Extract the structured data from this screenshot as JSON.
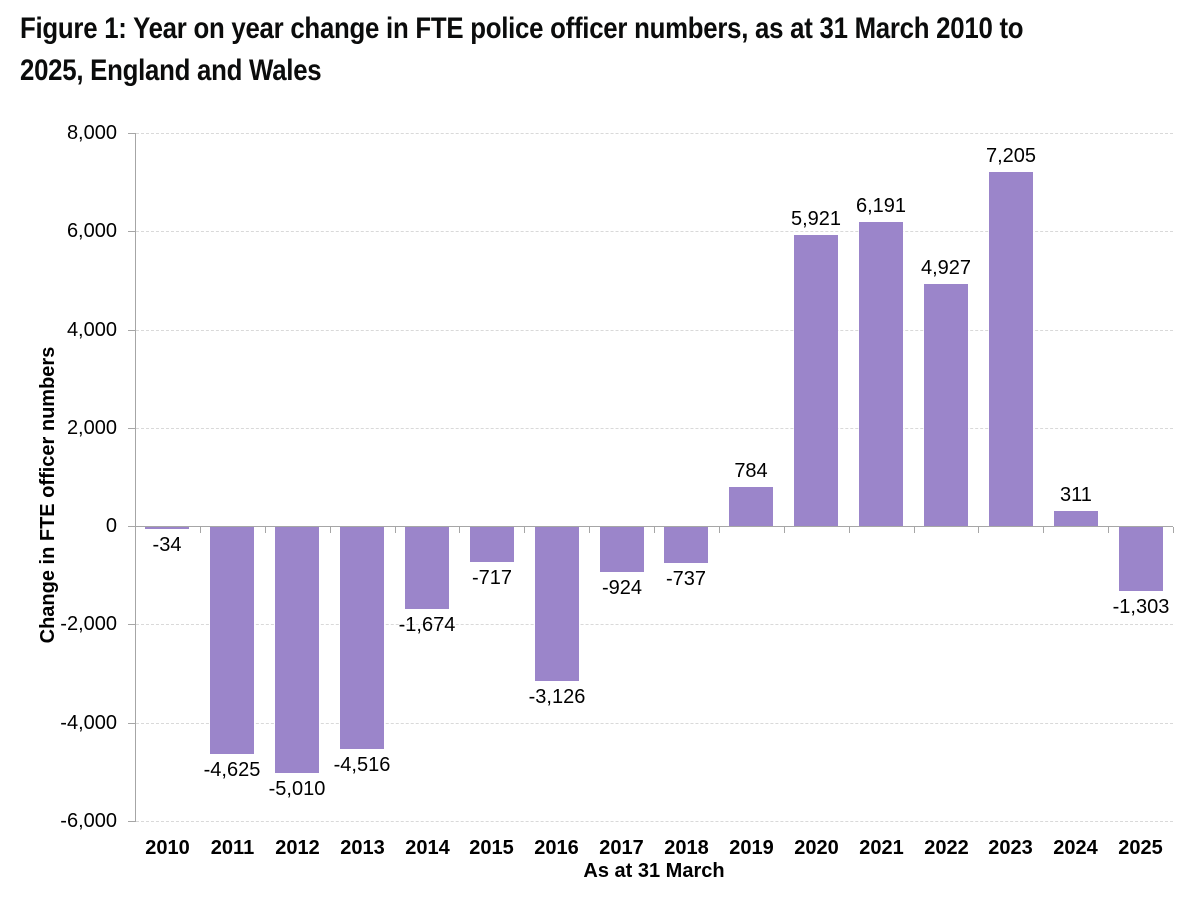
{
  "figure": {
    "title": "Figure 1: Year on year change in FTE police officer numbers, as at 31 March 2010 to 2025, England and Wales",
    "title_lines": [
      "Figure 1: Year on year change in FTE police officer numbers, as at 31 March 2010 to",
      "2025, England and Wales"
    ]
  },
  "chart_data": {
    "type": "bar",
    "title": "Figure 1: Year on year change in FTE police officer numbers, as at 31 March 2010 to 2025, England and Wales",
    "xlabel": "As at 31 March",
    "ylabel": "Change in FTE officer numbers",
    "ylim": [
      -6000,
      8000
    ],
    "ytick_step": 2000,
    "ytick_labels": [
      "8,000",
      "6,000",
      "4,000",
      "2,000",
      "0",
      "-2,000",
      "-4,000",
      "-6,000"
    ],
    "ytick_values": [
      8000,
      6000,
      4000,
      2000,
      0,
      -2000,
      -4000,
      -6000
    ],
    "grid": "horizontal-dashed",
    "legend_position": "none",
    "bar_color": "#9b85ca",
    "axis_color": "#a6a6a6",
    "gridline_color": "#d9d9d9",
    "text_color": "#000000",
    "categories": [
      "2010",
      "2011",
      "2012",
      "2013",
      "2014",
      "2015",
      "2016",
      "2017",
      "2018",
      "2019",
      "2020",
      "2021",
      "2022",
      "2023",
      "2024",
      "2025"
    ],
    "values": [
      -34,
      -4625,
      -5010,
      -4516,
      -1674,
      -717,
      -3126,
      -924,
      -737,
      784,
      5921,
      6191,
      4927,
      7205,
      311,
      -1303
    ],
    "value_labels": [
      "-34",
      "-4,625",
      "-5,010",
      "-4,516",
      "-1,674",
      "-717",
      "-3,126",
      "-924",
      "-737",
      "784",
      "5,921",
      "6,191",
      "4,927",
      "7,205",
      "311",
      "-1,303"
    ]
  }
}
